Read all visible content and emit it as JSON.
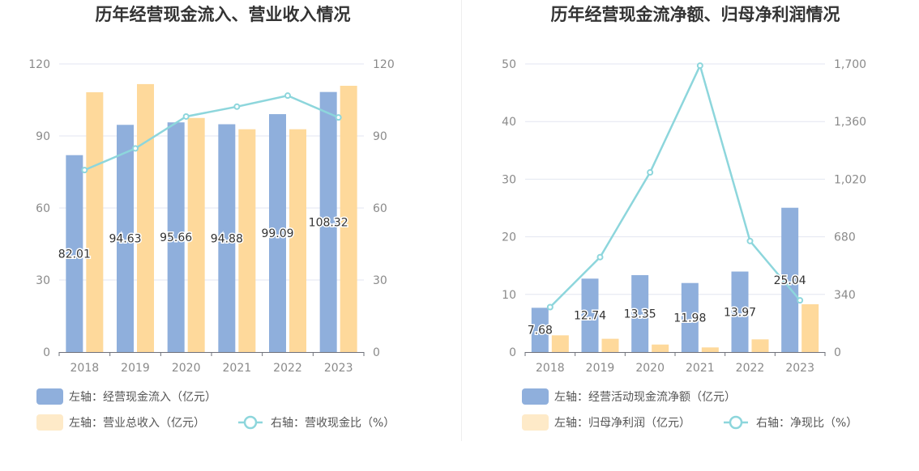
{
  "chart_data": [
    {
      "type": "bar",
      "title": "历年经营现金流入、营业收入情况",
      "categories": [
        "2018",
        "2019",
        "2020",
        "2021",
        "2022",
        "2023"
      ],
      "left_axis": {
        "ticks": [
          "0",
          "30",
          "60",
          "90",
          "120"
        ],
        "ylim": [
          0,
          120
        ]
      },
      "right_axis": {
        "ticks": [
          "0",
          "30",
          "60",
          "90",
          "120"
        ],
        "ylim": [
          0,
          120
        ]
      },
      "series": [
        {
          "name": "左轴：经营现金流入（亿元）",
          "type": "bar",
          "axis": "left",
          "color": "#8fafdc",
          "values": [
            82.01,
            94.63,
            95.66,
            94.88,
            99.09,
            108.32
          ],
          "labels": [
            "82.01",
            "94.63",
            "95.66",
            "94.88",
            "99.09",
            "108.32"
          ]
        },
        {
          "name": "左轴：营业总收入（亿元）",
          "type": "bar",
          "axis": "left",
          "color": "#fed99b",
          "values": [
            108.2,
            111.6,
            97.5,
            92.8,
            92.8,
            110.9
          ]
        },
        {
          "name": "右轴：营收现金比（%）",
          "type": "line",
          "axis": "right",
          "color": "#8dd6dc",
          "values": [
            75.8,
            84.8,
            98.1,
            102.2,
            106.8,
            97.7
          ]
        }
      ],
      "legend": "bottom"
    },
    {
      "type": "bar",
      "title": "历年经营现金流净额、归母净利润情况",
      "categories": [
        "2018",
        "2019",
        "2020",
        "2021",
        "2022",
        "2023"
      ],
      "left_axis": {
        "ticks": [
          "0",
          "10",
          "20",
          "30",
          "40",
          "50"
        ],
        "ylim": [
          0,
          50
        ]
      },
      "right_axis": {
        "ticks": [
          "0",
          "340",
          "680",
          "1,020",
          "1,360",
          "1,700"
        ],
        "ylim": [
          0,
          1700
        ]
      },
      "series": [
        {
          "name": "左轴：经营活动现金流净额（亿元）",
          "type": "bar",
          "axis": "left",
          "color": "#8fafdc",
          "values": [
            7.68,
            12.74,
            13.35,
            11.98,
            13.97,
            25.04
          ],
          "labels": [
            "7.68",
            "12.74",
            "13.35",
            "11.98",
            "13.97",
            "25.04"
          ]
        },
        {
          "name": "左轴：归母净利润（亿元）",
          "type": "bar",
          "axis": "left",
          "color": "#fed99b",
          "values": [
            2.9,
            2.3,
            1.3,
            0.8,
            2.2,
            8.3
          ]
        },
        {
          "name": "右轴：净现比（%）",
          "type": "line",
          "axis": "right",
          "color": "#8dd6dc",
          "values": [
            265,
            560,
            1060,
            1690,
            655,
            305
          ]
        }
      ],
      "legend": "bottom"
    }
  ]
}
